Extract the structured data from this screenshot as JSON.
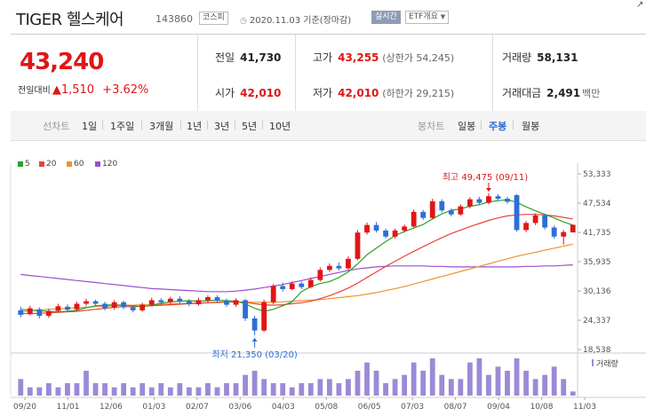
{
  "header": {
    "name": "TIGER 헬스케어",
    "code": "143860",
    "market": "코스피",
    "date_text": "2020.11.03 기준(장마감)",
    "realtime": "실시간",
    "etf": "ETF개요",
    "corner": "↗"
  },
  "price": {
    "current": "43,240",
    "change_label": "전일대비",
    "change_arrow": "▲",
    "change": "1,510",
    "change_pct": "+3.62%"
  },
  "stats": {
    "prev_close_label": "전일",
    "prev_close": "41,730",
    "high_label": "고가",
    "high": "43,255",
    "upper_limit": "(상한가 54,245)",
    "volume_label": "거래량",
    "volume": "58,131",
    "open_label": "시가",
    "open": "42,010",
    "low_label": "저가",
    "low": "42,010",
    "lower_limit": "(하한가 29,215)",
    "amount_label": "거래대금",
    "amount": "2,491",
    "amount_unit": "백만"
  },
  "tabs": {
    "line_label": "선차트",
    "line_items": [
      "1일",
      "1주일",
      "3개월",
      "1년",
      "3년",
      "5년",
      "10년"
    ],
    "candle_label": "봉차트",
    "candle_items": [
      "일봉",
      "주봉",
      "월봉"
    ],
    "candle_selected": "주봉"
  },
  "colors": {
    "up": "#e01616",
    "down": "#2d6fd6",
    "ma5": "#2ca02c",
    "ma20": "#e8423a",
    "ma60": "#f0922e",
    "ma120": "#9a4fd1",
    "volume": "#9b8ad6",
    "accent": "#2b6bd6"
  },
  "chart_data": {
    "type": "candlestick",
    "legend": [
      {
        "name": "5",
        "color": "#2ca02c"
      },
      {
        "name": "20",
        "color": "#e8423a"
      },
      {
        "name": "60",
        "color": "#f0922e"
      },
      {
        "name": "120",
        "color": "#9a4fd1"
      }
    ],
    "y_ticks": [
      53333,
      47534,
      41735,
      35935,
      30136,
      24337,
      18538
    ],
    "y_tick_labels": [
      "53,333",
      "47,534",
      "41,735",
      "35,935",
      "30,136",
      "24,337",
      "18,538"
    ],
    "ylim": [
      18538,
      53333
    ],
    "x_labels": [
      "09/20",
      "11/01",
      "12/06",
      "01/03",
      "02/07",
      "03/06",
      "04/03",
      "05/08",
      "06/05",
      "07/03",
      "08/07",
      "09/04",
      "10/08",
      "11/03"
    ],
    "max_label": "최고 49,475 (09/11)",
    "min_label": "최저 21,350 (03/20)",
    "max_index": 50,
    "min_index": 25,
    "volume_label": "거래량",
    "candles": [
      {
        "o": 26300,
        "c": 25400,
        "h": 27000,
        "l": 24900
      },
      {
        "o": 25600,
        "c": 26700,
        "h": 27200,
        "l": 25300
      },
      {
        "o": 26500,
        "c": 25200,
        "h": 26900,
        "l": 24700
      },
      {
        "o": 25200,
        "c": 26100,
        "h": 26600,
        "l": 24800
      },
      {
        "o": 26200,
        "c": 27100,
        "h": 27600,
        "l": 25900
      },
      {
        "o": 27000,
        "c": 26400,
        "h": 27500,
        "l": 26000
      },
      {
        "o": 26500,
        "c": 27600,
        "h": 28000,
        "l": 26200
      },
      {
        "o": 27600,
        "c": 28100,
        "h": 28600,
        "l": 27200
      },
      {
        "o": 28100,
        "c": 27600,
        "h": 28400,
        "l": 27200
      },
      {
        "o": 27600,
        "c": 26700,
        "h": 28000,
        "l": 26300
      },
      {
        "o": 26800,
        "c": 27900,
        "h": 28300,
        "l": 26400
      },
      {
        "o": 27900,
        "c": 26900,
        "h": 28200,
        "l": 26500
      },
      {
        "o": 26900,
        "c": 26300,
        "h": 27300,
        "l": 25900
      },
      {
        "o": 26300,
        "c": 27400,
        "h": 27800,
        "l": 26000
      },
      {
        "o": 27400,
        "c": 28300,
        "h": 28800,
        "l": 27100
      },
      {
        "o": 28300,
        "c": 27900,
        "h": 28700,
        "l": 27500
      },
      {
        "o": 27900,
        "c": 28600,
        "h": 29000,
        "l": 27600
      },
      {
        "o": 28600,
        "c": 28100,
        "h": 29100,
        "l": 27700
      },
      {
        "o": 28100,
        "c": 27500,
        "h": 28500,
        "l": 27100
      },
      {
        "o": 27500,
        "c": 28300,
        "h": 28800,
        "l": 27200
      },
      {
        "o": 28300,
        "c": 28900,
        "h": 29300,
        "l": 27900
      },
      {
        "o": 28900,
        "c": 28200,
        "h": 29300,
        "l": 27800
      },
      {
        "o": 28200,
        "c": 27400,
        "h": 28600,
        "l": 27000
      },
      {
        "o": 27400,
        "c": 28300,
        "h": 28700,
        "l": 27000
      },
      {
        "o": 28300,
        "c": 24700,
        "h": 28600,
        "l": 24200
      },
      {
        "o": 24700,
        "c": 22300,
        "h": 25200,
        "l": 21350
      },
      {
        "o": 22300,
        "c": 27900,
        "h": 28400,
        "l": 22000
      },
      {
        "o": 27900,
        "c": 31100,
        "h": 31500,
        "l": 27500
      },
      {
        "o": 31100,
        "c": 30500,
        "h": 31800,
        "l": 30000
      },
      {
        "o": 30500,
        "c": 31600,
        "h": 32000,
        "l": 30200
      },
      {
        "o": 31600,
        "c": 30900,
        "h": 32000,
        "l": 30500
      },
      {
        "o": 30900,
        "c": 32300,
        "h": 32800,
        "l": 30600
      },
      {
        "o": 32300,
        "c": 34300,
        "h": 34800,
        "l": 32000
      },
      {
        "o": 34300,
        "c": 35100,
        "h": 35600,
        "l": 33900
      },
      {
        "o": 35100,
        "c": 34600,
        "h": 35800,
        "l": 34200
      },
      {
        "o": 34600,
        "c": 36500,
        "h": 37000,
        "l": 34300
      },
      {
        "o": 36500,
        "c": 41700,
        "h": 42200,
        "l": 36200
      },
      {
        "o": 41700,
        "c": 43200,
        "h": 43700,
        "l": 41300
      },
      {
        "o": 43200,
        "c": 42100,
        "h": 43800,
        "l": 41700
      },
      {
        "o": 42100,
        "c": 40900,
        "h": 42500,
        "l": 40500
      },
      {
        "o": 40900,
        "c": 42100,
        "h": 42500,
        "l": 40500
      },
      {
        "o": 42100,
        "c": 42900,
        "h": 43300,
        "l": 41700
      },
      {
        "o": 42900,
        "c": 45800,
        "h": 46300,
        "l": 42600
      },
      {
        "o": 45800,
        "c": 44600,
        "h": 46200,
        "l": 44200
      },
      {
        "o": 44600,
        "c": 47900,
        "h": 48400,
        "l": 44300
      },
      {
        "o": 47900,
        "c": 46100,
        "h": 48300,
        "l": 45700
      },
      {
        "o": 46100,
        "c": 45300,
        "h": 46500,
        "l": 44900
      },
      {
        "o": 45300,
        "c": 46900,
        "h": 47300,
        "l": 45000
      },
      {
        "o": 46900,
        "c": 48300,
        "h": 48700,
        "l": 46500
      },
      {
        "o": 48300,
        "c": 47600,
        "h": 48800,
        "l": 47200
      },
      {
        "o": 47600,
        "c": 48900,
        "h": 49475,
        "l": 47300
      },
      {
        "o": 48900,
        "c": 48400,
        "h": 49300,
        "l": 48000
      },
      {
        "o": 48400,
        "c": 47800,
        "h": 48800,
        "l": 47400
      },
      {
        "o": 49100,
        "c": 42200,
        "h": 49300,
        "l": 41900
      },
      {
        "o": 42200,
        "c": 43600,
        "h": 44000,
        "l": 41800
      },
      {
        "o": 43600,
        "c": 45100,
        "h": 45500,
        "l": 43200
      },
      {
        "o": 45100,
        "c": 42700,
        "h": 45400,
        "l": 42300
      },
      {
        "o": 42700,
        "c": 40900,
        "h": 43100,
        "l": 40500
      },
      {
        "o": 40900,
        "c": 41800,
        "h": 42200,
        "l": 39300
      },
      {
        "o": 41730,
        "c": 43240,
        "h": 43255,
        "l": 41730
      }
    ],
    "ma5": [
      26500,
      26300,
      26200,
      26100,
      26000,
      26100,
      26300,
      26800,
      27200,
      27300,
      27400,
      27300,
      27200,
      27000,
      27300,
      27700,
      28000,
      28100,
      28200,
      28100,
      28200,
      28300,
      28200,
      28100,
      27600,
      26700,
      26100,
      26500,
      27200,
      28000,
      30000,
      31000,
      31600,
      32000,
      32800,
      33900,
      35500,
      37300,
      38600,
      39900,
      41100,
      41900,
      42600,
      43300,
      44400,
      45400,
      46100,
      46400,
      46900,
      47200,
      47800,
      48000,
      48200,
      47700,
      46800,
      46000,
      45300,
      44600,
      43800,
      43200
    ],
    "ma20": [
      25700,
      25600,
      25700,
      25800,
      25900,
      26000,
      26100,
      26300,
      26500,
      26700,
      26900,
      27000,
      27000,
      27100,
      27200,
      27300,
      27400,
      27500,
      27600,
      27700,
      27800,
      27900,
      28000,
      28000,
      27900,
      27600,
      27400,
      27300,
      27400,
      27600,
      27800,
      28100,
      28600,
      29200,
      29900,
      30700,
      31700,
      32800,
      33900,
      35000,
      36000,
      37000,
      38000,
      38900,
      39800,
      40700,
      41500,
      42200,
      42900,
      43500,
      44100,
      44600,
      45000,
      45200,
      45300,
      45300,
      45200,
      45000,
      44700,
      44400
    ],
    "ma60": [
      26000,
      26200,
      26400,
      26500,
      26600,
      26700,
      26800,
      26900,
      27000,
      27100,
      27200,
      27300,
      27300,
      27400,
      27400,
      27500,
      27600,
      27600,
      27700,
      27700,
      27800,
      27800,
      27900,
      27900,
      27900,
      27900,
      27900,
      27900,
      28000,
      28100,
      28200,
      28300,
      28400,
      28600,
      28800,
      29000,
      29200,
      29500,
      29800,
      30200,
      30600,
      31000,
      31500,
      32000,
      32500,
      33000,
      33500,
      34000,
      34500,
      35000,
      35500,
      36000,
      36500,
      37000,
      37400,
      37800,
      38200,
      38600,
      39000,
      39400
    ],
    "ma120": [
      33400,
      33200,
      33000,
      32800,
      32600,
      32400,
      32200,
      32000,
      31800,
      31600,
      31400,
      31200,
      31000,
      30800,
      30600,
      30500,
      30400,
      30300,
      30200,
      30100,
      30000,
      30000,
      30000,
      30100,
      30300,
      30500,
      30800,
      31100,
      31400,
      31800,
      32200,
      32600,
      33000,
      33400,
      33800,
      34200,
      34500,
      34700,
      34900,
      35000,
      35100,
      35100,
      35100,
      35100,
      35000,
      35000,
      34900,
      34900,
      34900,
      34900,
      34900,
      34900,
      34900,
      34900,
      35000,
      35000,
      35100,
      35100,
      35200,
      35300
    ],
    "volume": [
      4,
      2,
      2,
      3,
      2,
      3,
      3,
      6,
      3,
      3,
      2,
      3,
      2,
      3,
      2,
      3,
      2,
      3,
      2,
      2,
      3,
      2,
      3,
      3,
      5,
      6,
      4,
      3,
      3,
      2,
      3,
      3,
      4,
      4,
      3,
      4,
      6,
      8,
      6,
      3,
      4,
      5,
      8,
      6,
      9,
      5,
      4,
      4,
      8,
      9,
      5,
      7,
      6,
      9,
      6,
      4,
      5,
      7,
      4,
      1
    ]
  }
}
